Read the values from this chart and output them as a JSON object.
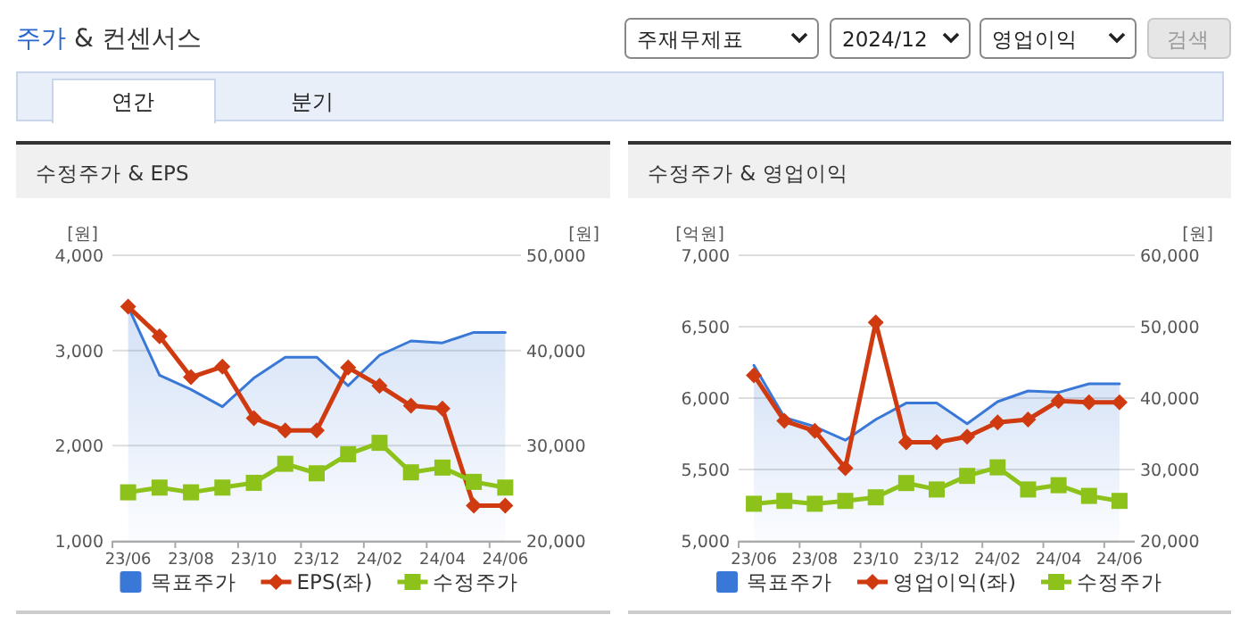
{
  "chart_data": [
    {
      "type": "other",
      "title": "주가 & 컨센서스",
      "annotations": [
        "주재무제표",
        "2024/12",
        "영업이익",
        "검색",
        "연간",
        "분기"
      ]
    },
    {
      "type": "line",
      "title": "수정주가 & EPS",
      "ylabel": "[원]",
      "y2label": "[원]",
      "categories": [
        "23/06",
        null,
        "23/08",
        null,
        "23/10",
        null,
        "23/12",
        null,
        "24/02",
        null,
        "24/04",
        null,
        "24/06"
      ],
      "ylim": [
        1000,
        4000
      ],
      "yticks": [
        {
          "value": 1000,
          "label": "1,000"
        },
        {
          "value": 2000,
          "label": "2,000"
        },
        {
          "value": 3000,
          "label": "3,000"
        },
        {
          "value": 4000,
          "label": "4,000"
        }
      ],
      "y2lim": [
        20000,
        50000
      ],
      "y2ticks": [
        {
          "value": 20000,
          "label": "20,000"
        },
        {
          "value": 30000,
          "label": "30,000"
        },
        {
          "value": 40000,
          "label": "40,000"
        },
        {
          "value": 50000,
          "label": "50,000"
        }
      ],
      "grid": "y",
      "legend": "bottom",
      "series": [
        {
          "name": "목표주가",
          "type": "area",
          "axis": "y2",
          "color": "#3a78d8",
          "marker": "none",
          "values": [
            44600,
            37400,
            35900,
            34100,
            37100,
            39300,
            39300,
            36300,
            39500,
            41000,
            40800,
            41900,
            41900
          ]
        },
        {
          "name": "EPS(좌)",
          "type": "line",
          "color": "#d03a10",
          "marker": "diamond",
          "values": [
            3460,
            3150,
            2720,
            2830,
            2290,
            2160,
            2160,
            2820,
            2630,
            2420,
            2390,
            1370,
            1370
          ]
        },
        {
          "name": "수정주가",
          "type": "line",
          "axis": "y2",
          "color": "#8cc21a",
          "marker": "square",
          "values": [
            25100,
            25600,
            25100,
            25600,
            26100,
            28100,
            27100,
            29100,
            30300,
            27200,
            27700,
            26200,
            25600
          ]
        }
      ]
    },
    {
      "type": "line",
      "title": "수정주가 & 영업이익",
      "ylabel": "[억원]",
      "y2label": "[원]",
      "categories": [
        "23/06",
        null,
        "23/08",
        null,
        "23/10",
        null,
        "23/12",
        null,
        "24/02",
        null,
        "24/04",
        null,
        "24/06"
      ],
      "ylim": [
        5000,
        7000
      ],
      "yticks": [
        {
          "value": 5000,
          "label": "5,000"
        },
        {
          "value": 5500,
          "label": "5,500"
        },
        {
          "value": 6000,
          "label": "6,000"
        },
        {
          "value": 6500,
          "label": "6,500"
        },
        {
          "value": 7000,
          "label": "7,000"
        }
      ],
      "y2lim": [
        20000,
        60000
      ],
      "y2ticks": [
        {
          "value": 20000,
          "label": "20,000"
        },
        {
          "value": 30000,
          "label": "30,000"
        },
        {
          "value": 40000,
          "label": "40,000"
        },
        {
          "value": 50000,
          "label": "50,000"
        },
        {
          "value": 60000,
          "label": "60,000"
        }
      ],
      "grid": "y",
      "legend": "bottom",
      "series": [
        {
          "name": "목표주가",
          "type": "area",
          "axis": "y2",
          "color": "#3a78d8",
          "marker": "none",
          "values": [
            44600,
            37300,
            36000,
            34100,
            37000,
            39300,
            39300,
            36400,
            39500,
            41000,
            40800,
            42000,
            42000
          ]
        },
        {
          "name": "영업이익(좌)",
          "type": "line",
          "color": "#d03a10",
          "marker": "diamond",
          "values": [
            6160,
            5840,
            5770,
            5510,
            6530,
            5690,
            5690,
            5730,
            5830,
            5850,
            5980,
            5970,
            5970
          ]
        },
        {
          "name": "수정주가",
          "type": "line",
          "axis": "y2",
          "color": "#8cc21a",
          "marker": "square",
          "values": [
            25200,
            25600,
            25200,
            25600,
            26100,
            28100,
            27200,
            29100,
            30300,
            27200,
            27800,
            26300,
            25600
          ]
        }
      ]
    }
  ]
}
